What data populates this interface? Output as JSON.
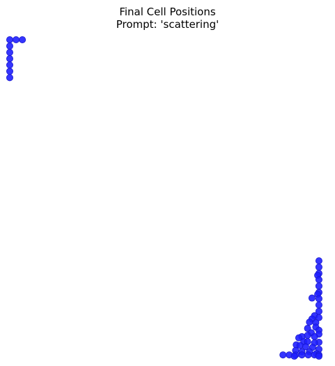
{
  "chart_data": {
    "type": "scatter",
    "title": "Final Cell Positions",
    "subtitle": "Prompt: 'scattering'",
    "xlabel": "",
    "ylabel": "",
    "xlim": [
      0,
      50
    ],
    "ylim": [
      0,
      50
    ],
    "grid": false,
    "axes_visible": false,
    "marker_color": "#1f1fff",
    "marker_edge_color": "#1a1acc",
    "series": [
      {
        "points": [
          [
            0,
            50
          ],
          [
            1,
            50
          ],
          [
            2,
            50
          ],
          [
            0,
            49
          ],
          [
            0,
            48
          ],
          [
            0,
            47
          ],
          [
            0,
            46
          ],
          [
            0,
            45
          ],
          [
            0,
            44
          ],
          [
            49,
            15
          ],
          [
            49,
            14
          ],
          [
            49,
            13
          ],
          [
            48.8,
            12.7
          ],
          [
            49,
            12
          ],
          [
            49,
            11
          ],
          [
            49,
            10
          ],
          [
            48.8,
            9.7
          ],
          [
            47.9,
            9.1
          ],
          [
            49,
            9
          ],
          [
            49,
            8
          ],
          [
            49,
            7
          ],
          [
            48.3,
            6.3
          ],
          [
            49,
            6
          ],
          [
            47.9,
            5.8
          ],
          [
            47.5,
            5.3
          ],
          [
            48.5,
            5.2
          ],
          [
            48.5,
            4.5
          ],
          [
            47.2,
            4.3
          ],
          [
            49,
            4
          ],
          [
            47.8,
            3.6
          ],
          [
            49,
            3.4
          ],
          [
            47.2,
            3.2
          ],
          [
            46.3,
            3.0
          ],
          [
            48.3,
            3.0
          ],
          [
            45.8,
            2.8
          ],
          [
            46.6,
            2.2
          ],
          [
            49,
            2.1
          ],
          [
            47.2,
            2.2
          ],
          [
            48.3,
            2.0
          ],
          [
            45.4,
            1.7
          ],
          [
            46.0,
            1.6
          ],
          [
            48.0,
            1.3
          ],
          [
            46.9,
            1.4
          ],
          [
            49,
            1.0
          ],
          [
            45.3,
            0.8
          ],
          [
            46.3,
            0.6
          ],
          [
            47.5,
            0.6
          ],
          [
            48.6,
            0.3
          ],
          [
            43.3,
            0.1
          ],
          [
            44.3,
            0.1
          ],
          [
            45.3,
            0.1
          ],
          [
            46.3,
            0.1
          ],
          [
            47.3,
            0.1
          ],
          [
            48.3,
            0.1
          ],
          [
            49,
            0.1
          ],
          [
            45.1,
            -0.1
          ],
          [
            49,
            -0.1
          ]
        ]
      }
    ]
  }
}
